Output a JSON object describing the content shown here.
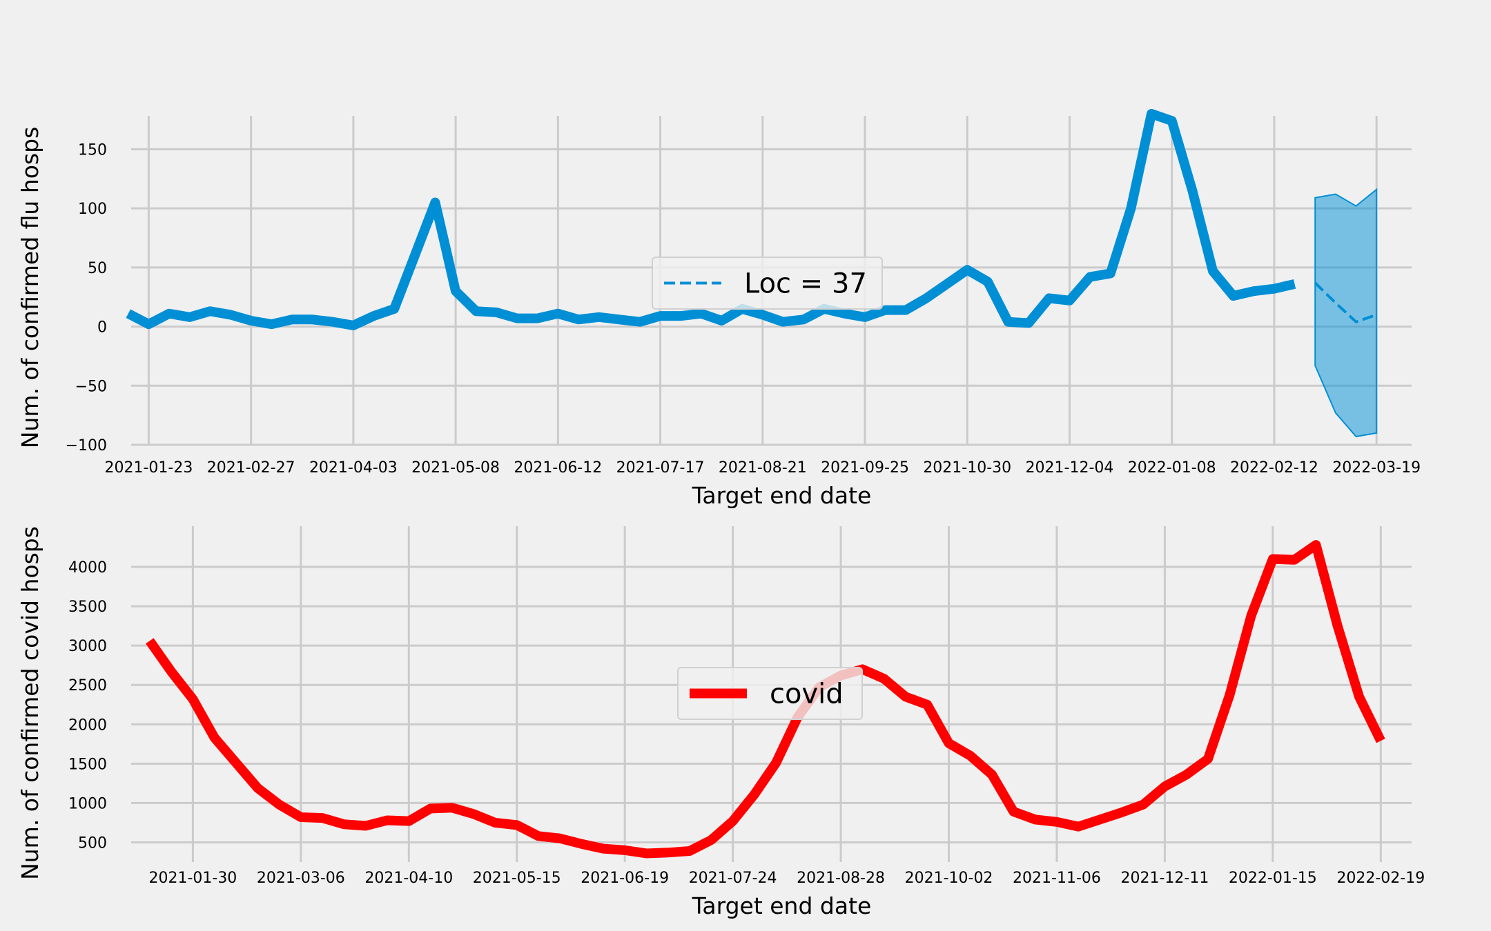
{
  "chart_data": [
    {
      "type": "line",
      "ylabel": "Num. of confirmed flu hosps",
      "xlabel": "Target end date",
      "ylim": [
        -100,
        180
      ],
      "yticks": [
        -100,
        -50,
        0,
        50,
        100,
        150
      ],
      "yticklabels": [
        "−100",
        "−50",
        "0",
        "50",
        "100",
        "150"
      ],
      "xticks": [
        "2021-01-23",
        "2021-02-27",
        "2021-04-03",
        "2021-05-08",
        "2021-06-12",
        "2021-07-17",
        "2021-08-21",
        "2021-09-25",
        "2021-10-30",
        "2021-12-04",
        "2022-01-08",
        "2022-02-12",
        "2022-03-19"
      ],
      "xlim": [
        "2021-01-17",
        "2022-03-31"
      ],
      "grid": true,
      "legend": {
        "position": "center",
        "entries": [
          {
            "label": "Loc = 37",
            "style": "dashed"
          }
        ]
      },
      "color": "#008fd5",
      "series": [
        {
          "style": "solid",
          "x": [
            "2021-01-16",
            "2021-01-23",
            "2021-01-30",
            "2021-02-06",
            "2021-02-13",
            "2021-02-20",
            "2021-02-27",
            "2021-03-06",
            "2021-03-13",
            "2021-03-20",
            "2021-03-27",
            "2021-04-03",
            "2021-04-10",
            "2021-04-17",
            "2021-04-24",
            "2021-05-01",
            "2021-05-08",
            "2021-05-15",
            "2021-05-22",
            "2021-05-29",
            "2021-06-05",
            "2021-06-12",
            "2021-06-19",
            "2021-06-26",
            "2021-07-03",
            "2021-07-10",
            "2021-07-17",
            "2021-07-24",
            "2021-07-31",
            "2021-08-07",
            "2021-08-14",
            "2021-08-21",
            "2021-08-28",
            "2021-09-04",
            "2021-09-11",
            "2021-09-18",
            "2021-09-25",
            "2021-10-02",
            "2021-10-09",
            "2021-10-16",
            "2021-10-23",
            "2021-10-30",
            "2021-11-06",
            "2021-11-13",
            "2021-11-20",
            "2021-11-27",
            "2021-12-04",
            "2021-12-11",
            "2021-12-18",
            "2021-12-25",
            "2022-01-01",
            "2022-01-08",
            "2022-01-15",
            "2022-01-22",
            "2022-01-29",
            "2022-02-05",
            "2022-02-12",
            "2022-02-19"
          ],
          "values": [
            11,
            2,
            11,
            8,
            13,
            10,
            5,
            2,
            6,
            6,
            4,
            1,
            9,
            15,
            60,
            105,
            30,
            13,
            12,
            7,
            7,
            11,
            6,
            8,
            6,
            4,
            9,
            9,
            11,
            5,
            15,
            10,
            4,
            6,
            15,
            11,
            8,
            14,
            14,
            24,
            36,
            48,
            38,
            4,
            3,
            24,
            22,
            42,
            45,
            100,
            180,
            174,
            115,
            47,
            26,
            30,
            32,
            36
          ]
        },
        {
          "style": "dashed",
          "x": [
            "2022-02-26",
            "2022-03-05",
            "2022-03-12",
            "2022-03-19"
          ],
          "values": [
            37,
            20,
            4,
            10
          ]
        }
      ],
      "band": {
        "x": [
          "2022-02-26",
          "2022-03-05",
          "2022-03-12",
          "2022-03-19"
        ],
        "lower": [
          -33,
          -73,
          -93,
          -90
        ],
        "upper": [
          109,
          112,
          102,
          116
        ]
      }
    },
    {
      "type": "line",
      "ylabel": "Num. of confirmed covid hosps",
      "xlabel": "Target end date",
      "ylim": [
        250,
        4500
      ],
      "yticks": [
        500,
        1000,
        1500,
        2000,
        2500,
        3000,
        3500,
        4000
      ],
      "yticklabels": [
        "500",
        "1000",
        "1500",
        "2000",
        "2500",
        "3000",
        "3500",
        "4000"
      ],
      "xticks": [
        "2021-01-30",
        "2021-03-06",
        "2021-04-10",
        "2021-05-15",
        "2021-06-19",
        "2021-07-24",
        "2021-08-28",
        "2021-10-02",
        "2021-11-06",
        "2021-12-11",
        "2022-01-15",
        "2022-02-19"
      ],
      "xlim": [
        "2021-01-10",
        "2022-03-01"
      ],
      "grid": true,
      "legend": {
        "position": "center",
        "entries": [
          {
            "label": "covid",
            "style": "solid"
          }
        ]
      },
      "color": "#ff0000",
      "series": [
        {
          "name": "covid",
          "style": "solid",
          "x": [
            "2021-01-16",
            "2021-01-23",
            "2021-01-30",
            "2021-02-06",
            "2021-02-13",
            "2021-02-20",
            "2021-02-27",
            "2021-03-06",
            "2021-03-13",
            "2021-03-20",
            "2021-03-27",
            "2021-04-03",
            "2021-04-10",
            "2021-04-17",
            "2021-04-24",
            "2021-05-01",
            "2021-05-08",
            "2021-05-15",
            "2021-05-22",
            "2021-05-29",
            "2021-06-05",
            "2021-06-12",
            "2021-06-19",
            "2021-06-26",
            "2021-07-03",
            "2021-07-10",
            "2021-07-17",
            "2021-07-24",
            "2021-07-31",
            "2021-08-07",
            "2021-08-14",
            "2021-08-21",
            "2021-08-28",
            "2021-09-04",
            "2021-09-11",
            "2021-09-18",
            "2021-09-25",
            "2021-10-02",
            "2021-10-09",
            "2021-10-16",
            "2021-10-23",
            "2021-10-30",
            "2021-11-06",
            "2021-11-13",
            "2021-11-20",
            "2021-11-27",
            "2021-12-04",
            "2021-12-11",
            "2021-12-18",
            "2021-12-25",
            "2022-01-01",
            "2022-01-08",
            "2022-01-15",
            "2022-01-22",
            "2022-01-29",
            "2022-02-05",
            "2022-02-12",
            "2022-02-19"
          ],
          "values": [
            3060,
            2670,
            2320,
            1830,
            1510,
            1190,
            980,
            820,
            810,
            730,
            710,
            780,
            770,
            930,
            940,
            860,
            750,
            720,
            580,
            550,
            480,
            420,
            400,
            360,
            370,
            390,
            530,
            770,
            1110,
            1510,
            2090,
            2470,
            2620,
            2700,
            2580,
            2350,
            2250,
            1760,
            1600,
            1360,
            890,
            790,
            760,
            700,
            790,
            880,
            980,
            1210,
            1360,
            1560,
            2370,
            3380,
            4100,
            4090,
            4280,
            3250,
            2350,
            1790
          ]
        }
      ]
    }
  ]
}
